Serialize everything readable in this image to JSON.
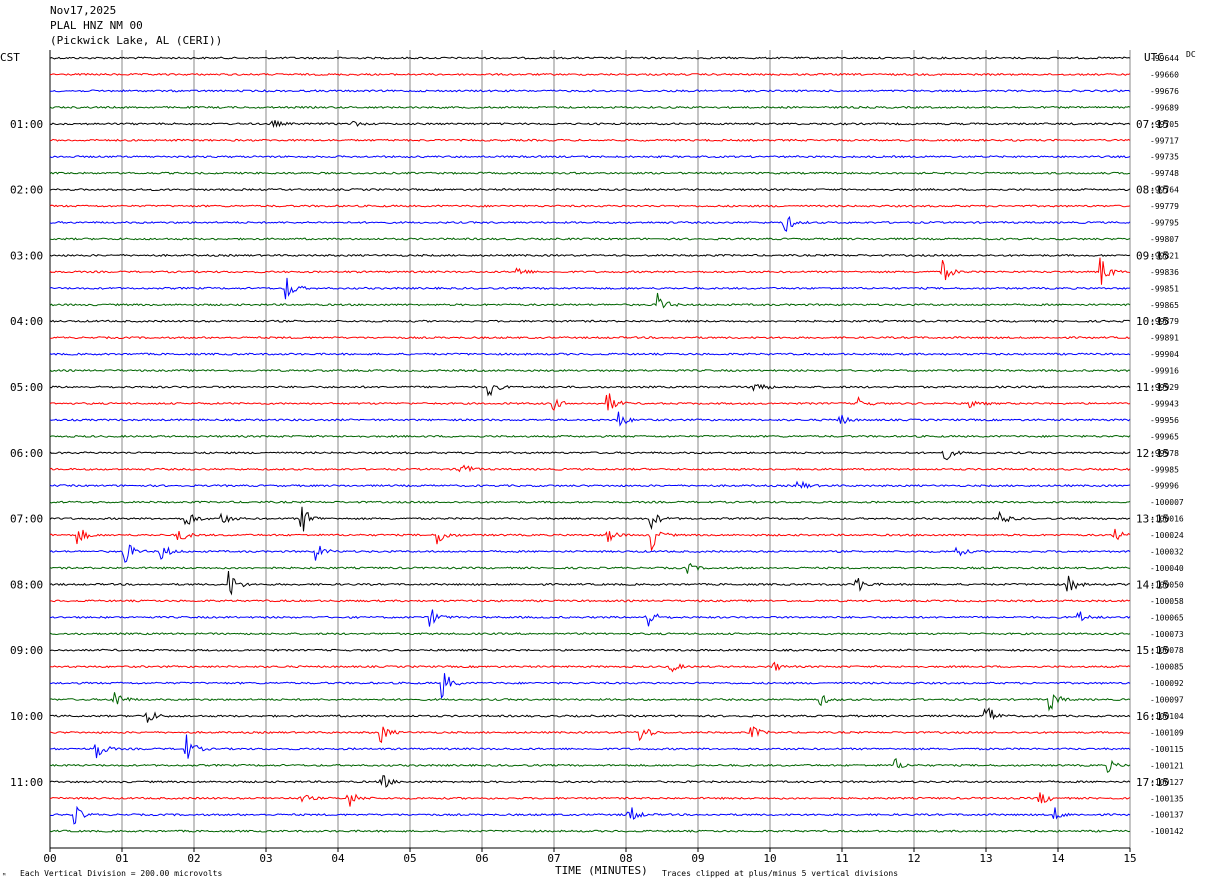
{
  "header": {
    "date": "Nov17,2025",
    "station": "PLAL HNZ NM 00",
    "location": "(Pickwick Lake, AL (CERI))"
  },
  "chart_data": {
    "type": "line",
    "title": "Nov17,2025",
    "left_axis_label": "CST",
    "right_axis_label": "UTC",
    "dc_label": "DC",
    "xlabel": "TIME (MINUTES)",
    "xlim": [
      0,
      15
    ],
    "x_ticks": [
      "00",
      "01",
      "02",
      "03",
      "04",
      "05",
      "06",
      "07",
      "08",
      "09",
      "10",
      "11",
      "12",
      "13",
      "14",
      "15"
    ],
    "trace_colors": [
      "#000000",
      "#ff0000",
      "#0000ff",
      "#006400"
    ],
    "cst_hour_labels": [
      "01:00",
      "02:00",
      "03:00",
      "04:00",
      "05:00",
      "06:00",
      "07:00",
      "08:00",
      "09:00",
      "10:00",
      "11:00"
    ],
    "utc_hour_labels": [
      "07:15",
      "08:15",
      "09:15",
      "10:15",
      "11:15",
      "12:15",
      "13:15",
      "14:15",
      "15:15",
      "16:15",
      "17:15"
    ],
    "dc_offsets": [
      "-99644",
      "-99660",
      "-99676",
      "-99689",
      "-99705",
      "-99717",
      "-99735",
      "-99748",
      "-99764",
      "-99779",
      "-99795",
      "-99807",
      "-99821",
      "-99836",
      "-99851",
      "-99865",
      "-99879",
      "-99891",
      "-99904",
      "-99916",
      "-99929",
      "-99943",
      "-99956",
      "-99965",
      "-99978",
      "-99985",
      "-99996",
      "-100007",
      "-100016",
      "-100024",
      "-100032",
      "-100040",
      "-100050",
      "-100058",
      "-100065",
      "-100073",
      "-100078",
      "-100085",
      "-100092",
      "-100097",
      "-100104",
      "-100109",
      "-100115",
      "-100121",
      "-100127",
      "-100135",
      "-100137",
      "-100142"
    ],
    "grid": true,
    "events": [
      {
        "row": 4,
        "t": 3.1,
        "a": 4
      },
      {
        "row": 4,
        "t": 4.2,
        "a": 3
      },
      {
        "row": 10,
        "t": 10.2,
        "a": 12
      },
      {
        "row": 13,
        "t": 6.5,
        "a": 5
      },
      {
        "row": 13,
        "t": 12.4,
        "a": 12
      },
      {
        "row": 13,
        "t": 14.6,
        "a": 16
      },
      {
        "row": 14,
        "t": 3.3,
        "a": 12
      },
      {
        "row": 15,
        "t": 8.45,
        "a": 12
      },
      {
        "row": 20,
        "t": 6.1,
        "a": 10
      },
      {
        "row": 20,
        "t": 9.8,
        "a": 9
      },
      {
        "row": 21,
        "t": 7.0,
        "a": 6
      },
      {
        "row": 21,
        "t": 7.75,
        "a": 12
      },
      {
        "row": 21,
        "t": 11.25,
        "a": 6
      },
      {
        "row": 21,
        "t": 12.8,
        "a": 5
      },
      {
        "row": 22,
        "t": 7.9,
        "a": 9
      },
      {
        "row": 22,
        "t": 10.95,
        "a": 8
      },
      {
        "row": 24,
        "t": 12.4,
        "a": 12
      },
      {
        "row": 25,
        "t": 5.7,
        "a": 10
      },
      {
        "row": 26,
        "t": 10.4,
        "a": 6
      },
      {
        "row": 28,
        "t": 1.9,
        "a": 10
      },
      {
        "row": 28,
        "t": 2.4,
        "a": 6
      },
      {
        "row": 28,
        "t": 3.5,
        "a": 16
      },
      {
        "row": 28,
        "t": 8.35,
        "a": 10
      },
      {
        "row": 28,
        "t": 13.2,
        "a": 7
      },
      {
        "row": 29,
        "t": 0.4,
        "a": 9
      },
      {
        "row": 29,
        "t": 1.8,
        "a": 7
      },
      {
        "row": 29,
        "t": 5.4,
        "a": 10
      },
      {
        "row": 29,
        "t": 7.75,
        "a": 7
      },
      {
        "row": 29,
        "t": 8.35,
        "a": 16
      },
      {
        "row": 29,
        "t": 14.8,
        "a": 6
      },
      {
        "row": 30,
        "t": 1.05,
        "a": 12
      },
      {
        "row": 30,
        "t": 1.55,
        "a": 9
      },
      {
        "row": 30,
        "t": 3.7,
        "a": 9
      },
      {
        "row": 30,
        "t": 12.6,
        "a": 6
      },
      {
        "row": 31,
        "t": 8.85,
        "a": 6
      },
      {
        "row": 32,
        "t": 2.5,
        "a": 14
      },
      {
        "row": 32,
        "t": 11.2,
        "a": 10
      },
      {
        "row": 32,
        "t": 14.15,
        "a": 10
      },
      {
        "row": 34,
        "t": 5.3,
        "a": 9
      },
      {
        "row": 34,
        "t": 8.3,
        "a": 12
      },
      {
        "row": 34,
        "t": 14.3,
        "a": 6
      },
      {
        "row": 37,
        "t": 8.6,
        "a": 8
      },
      {
        "row": 37,
        "t": 10.05,
        "a": 5
      },
      {
        "row": 38,
        "t": 5.45,
        "a": 16
      },
      {
        "row": 39,
        "t": 0.9,
        "a": 11
      },
      {
        "row": 39,
        "t": 10.7,
        "a": 6
      },
      {
        "row": 39,
        "t": 13.9,
        "a": 11
      },
      {
        "row": 40,
        "t": 1.35,
        "a": 9
      },
      {
        "row": 40,
        "t": 13.0,
        "a": 15
      },
      {
        "row": 41,
        "t": 4.6,
        "a": 10
      },
      {
        "row": 41,
        "t": 8.2,
        "a": 12
      },
      {
        "row": 41,
        "t": 9.75,
        "a": 7
      },
      {
        "row": 42,
        "t": 0.65,
        "a": 11
      },
      {
        "row": 42,
        "t": 1.9,
        "a": 14
      },
      {
        "row": 43,
        "t": 11.75,
        "a": 6
      },
      {
        "row": 43,
        "t": 14.7,
        "a": 6
      },
      {
        "row": 44,
        "t": 4.6,
        "a": 10
      },
      {
        "row": 45,
        "t": 3.5,
        "a": 5
      },
      {
        "row": 45,
        "t": 4.15,
        "a": 10
      },
      {
        "row": 45,
        "t": 13.75,
        "a": 9
      },
      {
        "row": 46,
        "t": 0.35,
        "a": 9
      },
      {
        "row": 46,
        "t": 8.05,
        "a": 10
      },
      {
        "row": 46,
        "t": 13.95,
        "a": 7
      }
    ]
  },
  "footer": {
    "scale_note": "Each Vertical Division =  200.00 microvolts",
    "clip_note": "Traces clipped at plus/minus 5 vertical divisions"
  }
}
